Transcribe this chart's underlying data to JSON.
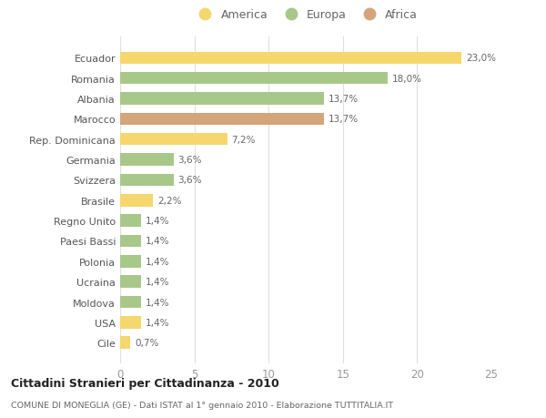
{
  "categories": [
    "Cile",
    "USA",
    "Moldova",
    "Ucraina",
    "Polonia",
    "Paesi Bassi",
    "Regno Unito",
    "Brasile",
    "Svizzera",
    "Germania",
    "Rep. Dominicana",
    "Marocco",
    "Albania",
    "Romania",
    "Ecuador"
  ],
  "values": [
    0.7,
    1.4,
    1.4,
    1.4,
    1.4,
    1.4,
    1.4,
    2.2,
    3.6,
    3.6,
    7.2,
    13.7,
    13.7,
    18.0,
    23.0
  ],
  "labels": [
    "0,7%",
    "1,4%",
    "1,4%",
    "1,4%",
    "1,4%",
    "1,4%",
    "1,4%",
    "2,2%",
    "3,6%",
    "3,6%",
    "7,2%",
    "13,7%",
    "13,7%",
    "18,0%",
    "23,0%"
  ],
  "colors": [
    "#f5d76e",
    "#f5d76e",
    "#a8c88a",
    "#a8c88a",
    "#a8c88a",
    "#a8c88a",
    "#a8c88a",
    "#f5d76e",
    "#a8c88a",
    "#a8c88a",
    "#f5d76e",
    "#d4a57a",
    "#a8c88a",
    "#a8c88a",
    "#f5d76e"
  ],
  "legend": [
    {
      "label": "America",
      "color": "#f5d76e"
    },
    {
      "label": "Europa",
      "color": "#a8c88a"
    },
    {
      "label": "Africa",
      "color": "#d4a57a"
    }
  ],
  "xlim": [
    0,
    25
  ],
  "xticks": [
    0,
    5,
    10,
    15,
    20,
    25
  ],
  "title": "Cittadini Stranieri per Cittadinanza - 2010",
  "subtitle": "COMUNE DI MONEGLIA (GE) - Dati ISTAT al 1° gennaio 2010 - Elaborazione TUTTITALIA.IT",
  "background_color": "#ffffff",
  "grid_color": "#e0e0e0",
  "bar_height": 0.6
}
